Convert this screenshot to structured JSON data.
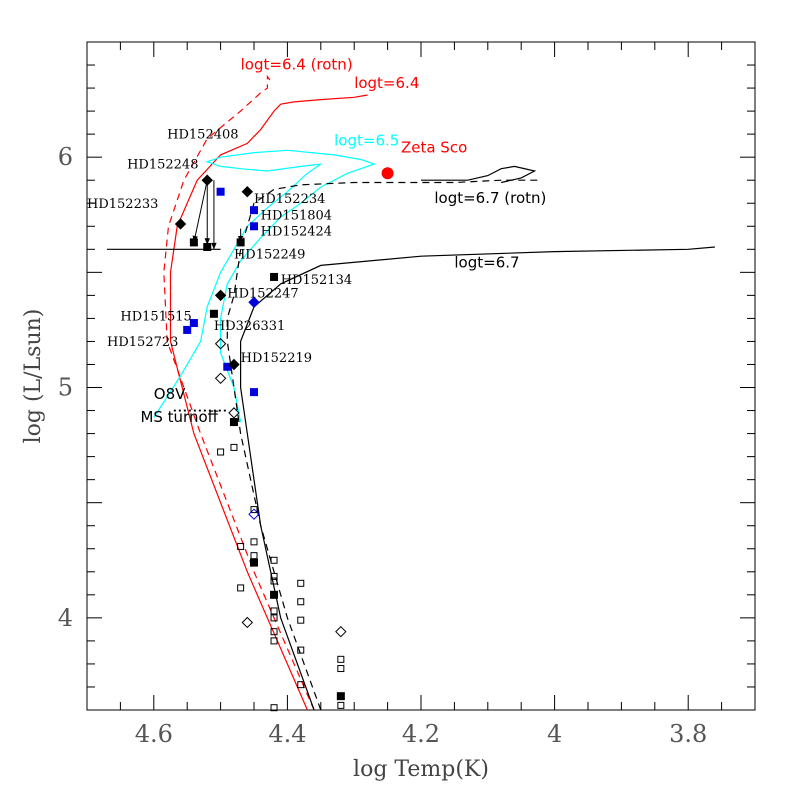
{
  "chart_data": {
    "type": "scatter",
    "title": "",
    "xlabel": "log Temp(K)",
    "ylabel": "log (L/Lsun)",
    "xlim": [
      4.7,
      3.7
    ],
    "ylim": [
      3.6,
      6.5
    ],
    "x_reversed": true,
    "grid": false,
    "x_ticks": [
      {
        "value": 4.6,
        "label": "4.6"
      },
      {
        "value": 4.4,
        "label": "4.4"
      },
      {
        "value": 4.2,
        "label": "4.2"
      },
      {
        "value": 4.0,
        "label": "4"
      },
      {
        "value": 3.8,
        "label": "3.8"
      }
    ],
    "y_ticks": [
      {
        "value": 4.0,
        "label": "4"
      },
      {
        "value": 5.0,
        "label": "5"
      },
      {
        "value": 6.0,
        "label": "6"
      }
    ],
    "colors": {
      "red": "#ff0000",
      "cyan": "#00ffff",
      "blue": "#0000dd",
      "black": "#000000"
    },
    "isochrones": [
      {
        "label": "logt=6.4 (rotn)",
        "color": "#ff0000",
        "dash": true,
        "points": [
          [
            4.36,
            3.6
          ],
          [
            4.45,
            4.2
          ],
          [
            4.53,
            4.8
          ],
          [
            4.58,
            5.2
          ],
          [
            4.585,
            5.5
          ],
          [
            4.578,
            5.7
          ],
          [
            4.555,
            5.9
          ],
          [
            4.52,
            6.08
          ],
          [
            4.47,
            6.2
          ],
          [
            4.44,
            6.28
          ],
          [
            4.43,
            6.3
          ],
          [
            4.43,
            6.35
          ],
          [
            4.425,
            6.33
          ]
        ]
      },
      {
        "label": "logt=6.4",
        "color": "#ff0000",
        "dash": false,
        "points": [
          [
            4.37,
            3.6
          ],
          [
            4.46,
            4.2
          ],
          [
            4.54,
            4.8
          ],
          [
            4.575,
            5.2
          ],
          [
            4.575,
            5.5
          ],
          [
            4.565,
            5.7
          ],
          [
            4.535,
            5.9
          ],
          [
            4.5,
            6.01
          ],
          [
            4.46,
            6.06
          ],
          [
            4.44,
            6.12
          ],
          [
            4.42,
            6.2
          ],
          [
            4.41,
            6.23
          ],
          [
            4.39,
            6.24
          ],
          [
            4.35,
            6.25
          ],
          [
            4.3,
            6.26
          ],
          [
            4.28,
            6.27
          ]
        ]
      },
      {
        "label": "logt=6.5",
        "color": "#00ffff",
        "dash": false,
        "points": [
          [
            4.6,
            4.87
          ],
          [
            4.56,
            5.05
          ],
          [
            4.53,
            5.2
          ],
          [
            4.52,
            5.35
          ],
          [
            4.5,
            5.5
          ],
          [
            4.48,
            5.6
          ],
          [
            4.46,
            5.7
          ],
          [
            4.43,
            5.78
          ],
          [
            4.4,
            5.85
          ],
          [
            4.37,
            5.93
          ],
          [
            4.35,
            5.97
          ],
          [
            4.38,
            5.96
          ],
          [
            4.43,
            5.94
          ],
          [
            4.47,
            5.95
          ],
          [
            4.5,
            5.96
          ],
          [
            4.52,
            5.98
          ],
          [
            4.5,
            6.0
          ],
          [
            4.45,
            6.02
          ],
          [
            4.4,
            6.03
          ],
          [
            4.33,
            6.01
          ],
          [
            4.29,
            5.99
          ],
          [
            4.27,
            5.97
          ],
          [
            4.31,
            5.93
          ],
          [
            4.35,
            5.87
          ],
          [
            4.38,
            5.8
          ],
          [
            4.41,
            5.74
          ],
          [
            4.44,
            5.65
          ],
          [
            4.47,
            5.55
          ],
          [
            4.49,
            5.45
          ],
          [
            4.5,
            5.3
          ],
          [
            4.5,
            5.15
          ],
          [
            4.48,
            5.0
          ],
          [
            4.47,
            4.85
          ]
        ]
      },
      {
        "label": "logt=6.7 (rotn)",
        "color": "#000000",
        "dash": true,
        "points": [
          [
            4.35,
            3.6
          ],
          [
            4.4,
            4.0
          ],
          [
            4.44,
            4.4
          ],
          [
            4.47,
            4.8
          ],
          [
            4.48,
            5.0
          ],
          [
            4.49,
            5.2
          ],
          [
            4.49,
            5.3
          ],
          [
            4.48,
            5.4
          ],
          [
            4.47,
            5.6
          ],
          [
            4.45,
            5.8
          ],
          [
            4.42,
            5.86
          ],
          [
            4.38,
            5.88
          ],
          [
            4.3,
            5.89
          ],
          [
            4.22,
            5.89
          ],
          [
            4.15,
            5.89
          ],
          [
            4.08,
            5.9
          ],
          [
            4.02,
            5.9
          ]
        ]
      },
      {
        "label": "logt=6.7",
        "color": "#000000",
        "dash": false,
        "points": [
          [
            4.36,
            3.6
          ],
          [
            4.41,
            4.0
          ],
          [
            4.44,
            4.4
          ],
          [
            4.46,
            4.8
          ],
          [
            4.47,
            5.0
          ],
          [
            4.47,
            5.2
          ],
          [
            4.45,
            5.35
          ],
          [
            4.41,
            5.45
          ],
          [
            4.35,
            5.53
          ],
          [
            4.2,
            5.57
          ],
          [
            4.0,
            5.59
          ],
          [
            3.8,
            5.6
          ],
          [
            3.76,
            5.61
          ]
        ]
      }
    ],
    "isochrone_extras": [
      {
        "color": "#000000",
        "dash": false,
        "points": [
          [
            4.5,
            5.6
          ],
          [
            4.65,
            5.6
          ],
          [
            4.67,
            5.6
          ]
        ]
      },
      {
        "color": "#000000",
        "dash": false,
        "points": [
          [
            4.2,
            5.9
          ],
          [
            4.13,
            5.9
          ],
          [
            4.1,
            5.92
          ],
          [
            4.08,
            5.95
          ],
          [
            4.06,
            5.96
          ],
          [
            4.03,
            5.94
          ],
          [
            4.05,
            5.91
          ],
          [
            4.08,
            5.89
          ]
        ]
      }
    ],
    "isochrone_labels": [
      {
        "text": "logt=6.4 (rotn)",
        "color": "#ff0000",
        "x": 4.47,
        "y": 6.38
      },
      {
        "text": "logt=6.4",
        "color": "#ff0000",
        "x": 4.3,
        "y": 6.3
      },
      {
        "text": "logt=6.5",
        "color": "#00ffff",
        "x": 4.33,
        "y": 6.05
      },
      {
        "text": "Zeta Sco",
        "color": "#ff0000",
        "x": 4.23,
        "y": 6.02
      },
      {
        "text": "logt=6.7 (rotn)",
        "color": "#000000",
        "x": 4.18,
        "y": 5.8
      },
      {
        "text": "logt=6.7",
        "color": "#000000",
        "x": 4.15,
        "y": 5.52
      },
      {
        "text": "O8V",
        "color": "#000000",
        "x": 4.6,
        "y": 4.95
      },
      {
        "text": "MS turnoff",
        "color": "#000000",
        "x": 4.62,
        "y": 4.85
      }
    ],
    "ms_turnoff_line": {
      "x_from": 4.57,
      "x_to": 4.49,
      "y": 4.9
    },
    "zeta_sco": {
      "x": 4.25,
      "y": 5.93,
      "color": "#ff0000"
    },
    "named_stars": [
      {
        "name": "HD152408",
        "x": 4.52,
        "y": 5.9,
        "symbol": "diamond",
        "color": "#000000",
        "lx": 4.58,
        "ly": 6.08
      },
      {
        "name": "HD152248",
        "x": 4.5,
        "y": 5.85,
        "symbol": "square",
        "color": "#0000dd",
        "lx": 4.64,
        "ly": 5.95
      },
      {
        "name": "HD152233",
        "x": 4.56,
        "y": 5.71,
        "symbol": "diamond",
        "color": "#000000",
        "lx": 4.7,
        "ly": 5.78
      },
      {
        "name": "HD152234",
        "x": 4.46,
        "y": 5.85,
        "symbol": "diamond",
        "color": "#000000",
        "lx": 4.45,
        "ly": 5.8
      },
      {
        "name": "HD151804",
        "x": 4.45,
        "y": 5.77,
        "symbol": "square",
        "color": "#0000dd",
        "lx": 4.44,
        "ly": 5.73
      },
      {
        "name": "HD152424",
        "x": 4.45,
        "y": 5.7,
        "symbol": "square",
        "color": "#0000dd",
        "lx": 4.44,
        "ly": 5.66
      },
      {
        "name": "HD152249",
        "x": 4.47,
        "y": 5.63,
        "symbol": "square",
        "color": "#000000",
        "lx": 4.48,
        "ly": 5.56
      },
      {
        "name": "HD152134",
        "x": 4.42,
        "y": 5.48,
        "symbol": "square",
        "color": "#000000",
        "lx": 4.41,
        "ly": 5.45
      },
      {
        "name": "HD152247",
        "x": 4.5,
        "y": 5.4,
        "symbol": "diamond",
        "color": "#000000",
        "lx": 4.49,
        "ly": 5.39
      },
      {
        "name": "HD151515",
        "x": 4.54,
        "y": 5.28,
        "symbol": "square",
        "color": "#0000dd",
        "lx": 4.65,
        "ly": 5.29
      },
      {
        "name": "HD326331",
        "x": 4.51,
        "y": 5.32,
        "symbol": "square",
        "color": "#000000",
        "lx": 4.51,
        "ly": 5.25
      },
      {
        "name": "HD152723",
        "x": 4.55,
        "y": 5.25,
        "symbol": "square",
        "color": "#0000dd",
        "lx": 4.67,
        "ly": 5.18
      },
      {
        "name": "HD152219",
        "x": 4.48,
        "y": 5.1,
        "symbol": "diamond",
        "color": "#000000",
        "lx": 4.47,
        "ly": 5.11
      }
    ],
    "arrows": [
      {
        "from": [
          4.52,
          5.9
        ],
        "to": [
          4.54,
          5.63
        ]
      },
      {
        "from": [
          4.52,
          5.9
        ],
        "to": [
          4.52,
          5.62
        ]
      },
      {
        "from": [
          4.51,
          5.9
        ],
        "to": [
          4.51,
          5.6
        ]
      },
      {
        "from": [
          4.47,
          5.69
        ],
        "to": [
          4.47,
          5.63
        ]
      }
    ],
    "other_points": [
      {
        "x": 4.54,
        "y": 5.63,
        "symbol": "square",
        "color": "#000000",
        "filled": true
      },
      {
        "x": 4.52,
        "y": 5.61,
        "symbol": "square",
        "color": "#000000",
        "filled": true
      },
      {
        "x": 4.49,
        "y": 5.09,
        "symbol": "square",
        "color": "#0000dd",
        "filled": true
      },
      {
        "x": 4.45,
        "y": 5.37,
        "symbol": "diamond",
        "color": "#0000dd",
        "filled": true
      },
      {
        "x": 4.45,
        "y": 4.98,
        "symbol": "square",
        "color": "#0000dd",
        "filled": true
      },
      {
        "x": 4.5,
        "y": 5.19,
        "symbol": "diamond",
        "color": "#000000",
        "filled": false
      },
      {
        "x": 4.5,
        "y": 5.04,
        "symbol": "diamond",
        "color": "#000000",
        "filled": false
      },
      {
        "x": 4.48,
        "y": 4.89,
        "symbol": "diamond",
        "color": "#000000",
        "filled": false
      },
      {
        "x": 4.48,
        "y": 4.85,
        "symbol": "square",
        "color": "#000000",
        "filled": true
      },
      {
        "x": 4.48,
        "y": 4.74,
        "symbol": "square",
        "color": "#000000",
        "filled": false
      },
      {
        "x": 4.5,
        "y": 4.72,
        "symbol": "square",
        "color": "#000000",
        "filled": false
      },
      {
        "x": 4.45,
        "y": 4.47,
        "symbol": "square",
        "color": "#000000",
        "filled": false
      },
      {
        "x": 4.45,
        "y": 4.45,
        "symbol": "diamond",
        "color": "#0000dd",
        "filled": false
      },
      {
        "x": 4.47,
        "y": 4.31,
        "symbol": "square",
        "color": "#000000",
        "filled": false
      },
      {
        "x": 4.45,
        "y": 4.33,
        "symbol": "square",
        "color": "#000000",
        "filled": false
      },
      {
        "x": 4.45,
        "y": 4.27,
        "symbol": "square",
        "color": "#000000",
        "filled": false
      },
      {
        "x": 4.45,
        "y": 4.24,
        "symbol": "square",
        "color": "#000000",
        "filled": true
      },
      {
        "x": 4.42,
        "y": 4.25,
        "symbol": "square",
        "color": "#000000",
        "filled": false
      },
      {
        "x": 4.42,
        "y": 4.18,
        "symbol": "square",
        "color": "#000000",
        "filled": false
      },
      {
        "x": 4.42,
        "y": 4.16,
        "symbol": "square",
        "color": "#000000",
        "filled": false
      },
      {
        "x": 4.42,
        "y": 4.1,
        "symbol": "square",
        "color": "#000000",
        "filled": true
      },
      {
        "x": 4.47,
        "y": 4.13,
        "symbol": "square",
        "color": "#000000",
        "filled": false
      },
      {
        "x": 4.38,
        "y": 4.15,
        "symbol": "square",
        "color": "#000000",
        "filled": false
      },
      {
        "x": 4.38,
        "y": 4.07,
        "symbol": "square",
        "color": "#000000",
        "filled": false
      },
      {
        "x": 4.42,
        "y": 4.03,
        "symbol": "square",
        "color": "#000000",
        "filled": false
      },
      {
        "x": 4.42,
        "y": 4.0,
        "symbol": "square",
        "color": "#000000",
        "filled": false
      },
      {
        "x": 4.46,
        "y": 3.98,
        "symbol": "diamond",
        "color": "#000000",
        "filled": false
      },
      {
        "x": 4.38,
        "y": 3.99,
        "symbol": "square",
        "color": "#000000",
        "filled": false
      },
      {
        "x": 4.42,
        "y": 3.94,
        "symbol": "square",
        "color": "#000000",
        "filled": false
      },
      {
        "x": 4.42,
        "y": 3.9,
        "symbol": "square",
        "color": "#000000",
        "filled": false
      },
      {
        "x": 4.38,
        "y": 3.86,
        "symbol": "square",
        "color": "#000000",
        "filled": false
      },
      {
        "x": 4.32,
        "y": 3.94,
        "symbol": "diamond",
        "color": "#000000",
        "filled": false
      },
      {
        "x": 4.32,
        "y": 3.82,
        "symbol": "square",
        "color": "#000000",
        "filled": false
      },
      {
        "x": 4.32,
        "y": 3.78,
        "symbol": "square",
        "color": "#000000",
        "filled": false
      },
      {
        "x": 4.38,
        "y": 3.71,
        "symbol": "square",
        "color": "#000000",
        "filled": false
      },
      {
        "x": 4.32,
        "y": 3.66,
        "symbol": "square",
        "color": "#000000",
        "filled": true
      },
      {
        "x": 4.32,
        "y": 3.62,
        "symbol": "square",
        "color": "#000000",
        "filled": false
      },
      {
        "x": 4.42,
        "y": 3.61,
        "symbol": "square",
        "color": "#000000",
        "filled": false
      }
    ]
  }
}
